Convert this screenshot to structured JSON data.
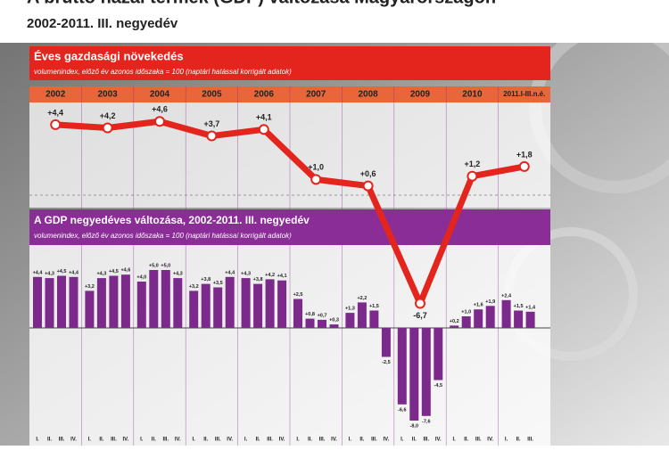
{
  "title": "A bruttó hazai termék (GDP) változása Magyarországon",
  "subtitle": "2002-2011. III. negyedév",
  "chart_data": [
    {
      "type": "line",
      "title": "Éves gazdasági növekedés",
      "subtitle": "volumenindex, előző év azonos időszaka = 100 (naptári hatással korrigált adatok)",
      "categories": [
        "2002",
        "2003",
        "2004",
        "2005",
        "2006",
        "2007",
        "2008",
        "2009",
        "2010",
        "2011.I-III.n.é."
      ],
      "values": [
        4.4,
        4.2,
        4.6,
        3.7,
        4.1,
        1.0,
        0.6,
        -6.7,
        1.2,
        1.8
      ],
      "value_labels": [
        "+4,4",
        "+4,2",
        "+4,6",
        "+3,7",
        "+4,1",
        "+1,0",
        "+0,6",
        "-6,7",
        "+1,2",
        "+1,8"
      ],
      "color": "#e3251e",
      "ylim": [
        -7.5,
        5.5
      ]
    },
    {
      "type": "bar",
      "title": "A GDP negyedéves változása, 2002-2011. III. negyedév",
      "subtitle": "volumenindex, előző év azonos időszaka = 100 (naptári hatással korrigált adatok)",
      "categories": [
        "I.",
        "II.",
        "III.",
        "IV.",
        "I.",
        "II.",
        "III.",
        "IV.",
        "I.",
        "II.",
        "III.",
        "IV.",
        "I.",
        "II.",
        "III.",
        "IV.",
        "I.",
        "II.",
        "III.",
        "IV.",
        "I.",
        "II.",
        "III.",
        "IV.",
        "I.",
        "II.",
        "III.",
        "IV.",
        "I.",
        "II.",
        "III.",
        "IV.",
        "I.",
        "II.",
        "III.",
        "IV.",
        "I.",
        "II.",
        "III."
      ],
      "values": [
        4.4,
        4.3,
        4.5,
        4.4,
        3.2,
        4.3,
        4.5,
        4.6,
        4.0,
        5.0,
        5.0,
        4.3,
        3.2,
        3.8,
        3.5,
        4.4,
        4.3,
        3.8,
        4.2,
        4.1,
        2.5,
        0.8,
        0.7,
        0.3,
        1.3,
        2.2,
        1.5,
        -2.5,
        -6.6,
        -8.0,
        -7.6,
        -4.5,
        0.2,
        1.0,
        1.6,
        1.9,
        2.4,
        1.5,
        1.4
      ],
      "value_labels": [
        "+4,4",
        "+4,3",
        "+4,5",
        "+4,4",
        "+3,2",
        "+4,3",
        "+4,5",
        "+4,6",
        "+4,0",
        "+5,0",
        "+5,0",
        "+4,3",
        "+3,2",
        "+3,8",
        "+3,5",
        "+4,4",
        "+4,3",
        "+3,8",
        "+4,2",
        "+4,1",
        "+2,5",
        "+0,8",
        "+0,7",
        "+0,3",
        "+1,3",
        "+2,2",
        "+1,5",
        "-2,5",
        "-6,6",
        "-8,0",
        "-7,6",
        "-4,5",
        "+0,2",
        "+1,0",
        "+1,6",
        "+1,9",
        "+2,4",
        "+1,5",
        "+1,4"
      ],
      "color": "#7b2a8c",
      "ylim": [
        -9,
        5.5
      ]
    }
  ]
}
